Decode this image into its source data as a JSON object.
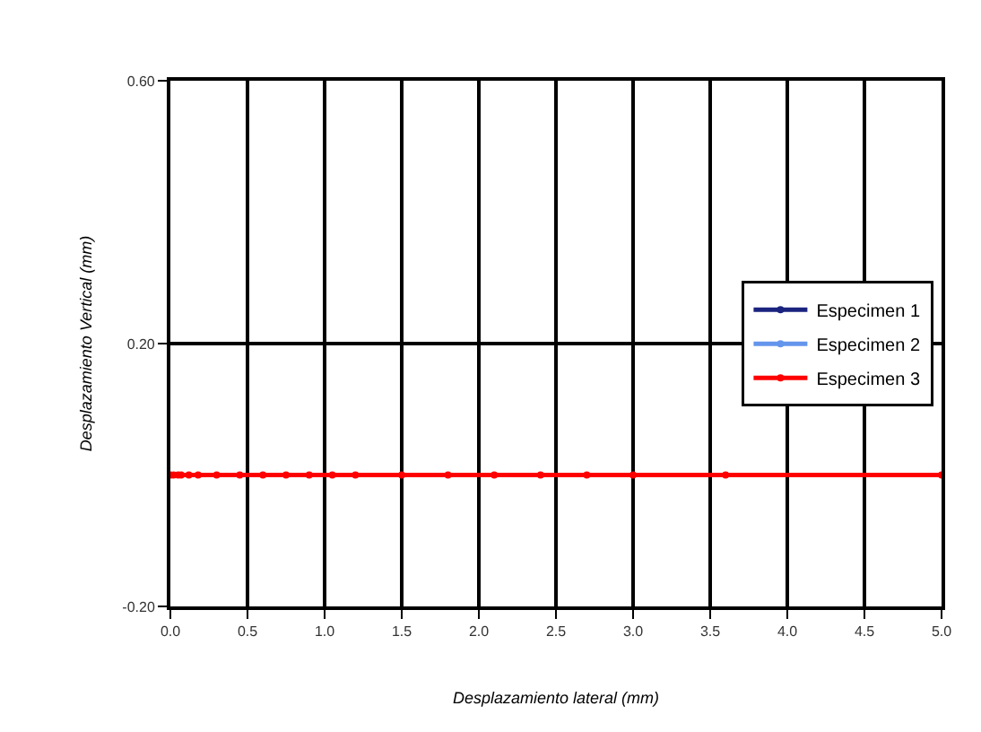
{
  "chart_data": {
    "type": "line",
    "xlabel": "Desplazamiento lateral (mm)",
    "ylabel": "Desplazamiento Vertical (mm)",
    "x": [
      0,
      0.02,
      0.05,
      0.07,
      0.12,
      0.18,
      0.3,
      0.45,
      0.6,
      0.75,
      0.9,
      1.05,
      1.2,
      1.5,
      1.8,
      2.1,
      2.4,
      2.7,
      3.0,
      3.6,
      5.0
    ],
    "series": [
      {
        "name": "Especimen 1",
        "color": "#1a237e",
        "values": [
          null,
          null,
          null,
          null,
          null,
          null,
          null,
          null,
          null,
          null,
          null,
          null,
          null,
          null,
          null,
          null,
          null,
          null,
          null,
          null,
          null
        ]
      },
      {
        "name": "Especimen 2",
        "color": "#6495ed",
        "values": [
          null,
          null,
          null,
          null,
          null,
          null,
          null,
          null,
          null,
          null,
          null,
          null,
          null,
          null,
          null,
          null,
          null,
          null,
          null,
          null,
          null
        ]
      },
      {
        "name": "Especimen 3",
        "color": "#ff0000",
        "values": [
          0,
          0,
          0,
          0,
          0,
          0,
          0,
          0,
          0,
          0,
          0,
          0,
          0,
          0,
          0,
          0,
          0,
          0,
          0,
          0,
          0
        ]
      }
    ],
    "xlim": [
      0,
      5
    ],
    "xticks": [
      {
        "value": 0,
        "label": "0.0"
      },
      0.5,
      {
        "value": 1,
        "label": "1.0"
      },
      1.5,
      {
        "value": 2,
        "label": "2.0"
      },
      2.5,
      {
        "value": 3,
        "label": "3.0"
      },
      3.5,
      {
        "value": 4,
        "label": "4.0"
      },
      4.5,
      {
        "value": 5,
        "label": "5.0"
      }
    ],
    "ylim": [
      -0.2,
      0.6
    ],
    "yticks": [
      {
        "value": -0.2,
        "label": "-0.20"
      },
      {
        "value": 0.2,
        "label": "0.20"
      },
      {
        "value": 0.6,
        "label": "0.60"
      }
    ],
    "grid": true,
    "legend": "right",
    "marker": "circle",
    "line_style": "solid"
  }
}
